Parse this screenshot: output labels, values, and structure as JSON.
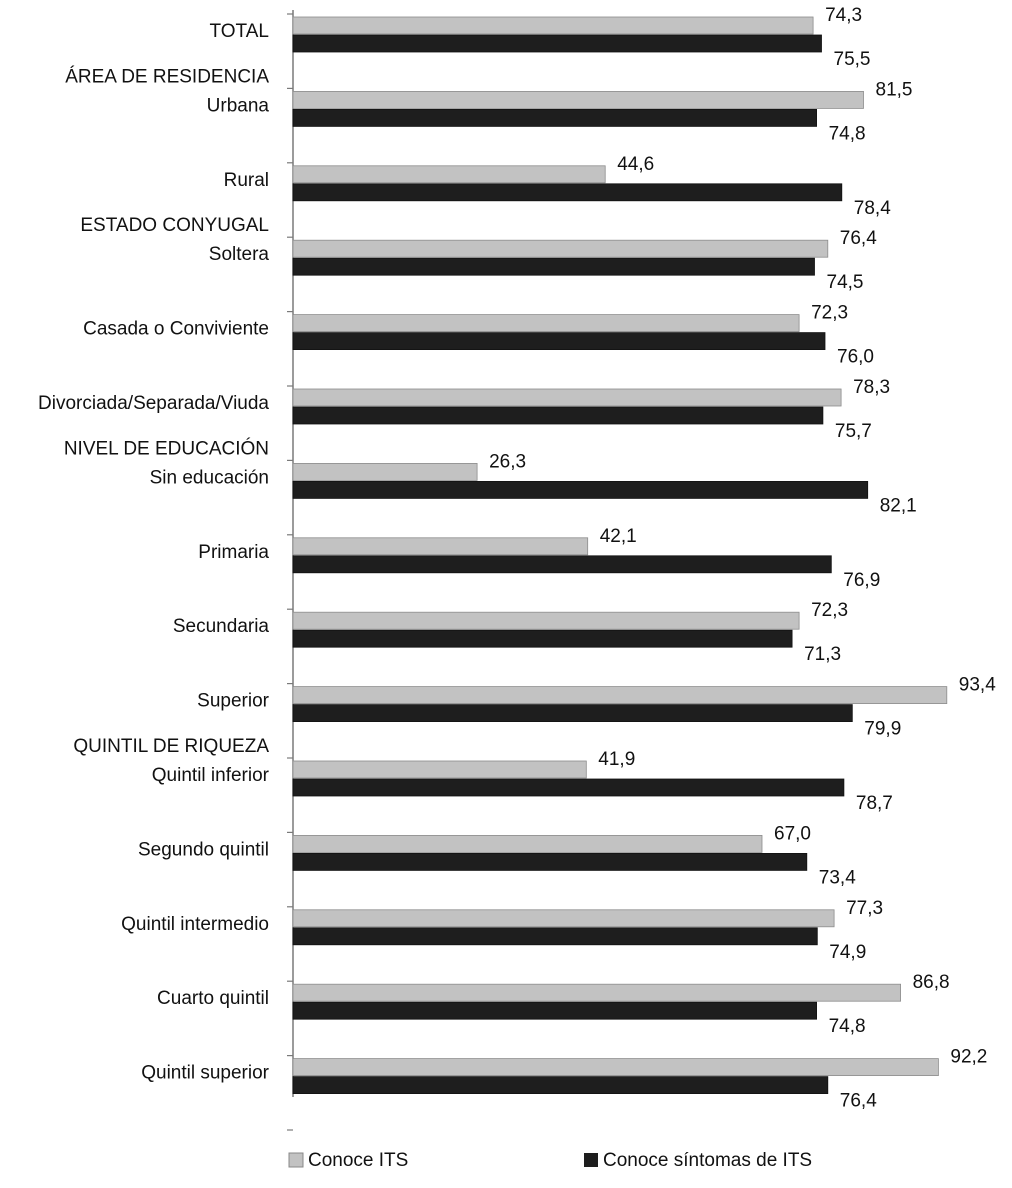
{
  "chart_data": {
    "type": "bar",
    "orientation": "horizontal",
    "title": "",
    "xlabel": "",
    "ylabel": "",
    "xlim": [
      0,
      100
    ],
    "grid": false,
    "legend_position": "bottom",
    "section_headers": [
      {
        "text": "ÁREA DE RESIDENCIA",
        "after": "TOTAL"
      },
      {
        "text": "ESTADO CONYUGAL",
        "after": "Rural"
      },
      {
        "text": "NIVEL DE EDUCACIÓN",
        "after": "Divorciada/Separada/Viuda"
      },
      {
        "text": "QUINTIL DE RIQUEZA",
        "after": "Superior"
      }
    ],
    "categories": [
      "TOTAL",
      "Urbana",
      "Rural",
      "Soltera",
      "Casada o Conviviente",
      "Divorciada/Separada/Viuda",
      "Sin educación",
      "Primaria",
      "Secundaria",
      "Superior",
      "Quintil inferior",
      "Segundo quintil",
      "Quintil intermedio",
      "Cuarto quintil",
      "Quintil superior"
    ],
    "series": [
      {
        "name": "Conoce ITS",
        "color": "#c2c2c2",
        "values": [
          74.3,
          81.5,
          44.6,
          76.4,
          72.3,
          78.3,
          26.3,
          42.1,
          72.3,
          93.4,
          41.9,
          67.0,
          77.3,
          86.8,
          92.2
        ],
        "labels": [
          "74,3",
          "81,5",
          "44,6",
          "76,4",
          "72,3",
          "78,3",
          "26,3",
          "42,1",
          "72,3",
          "93,4",
          "41,9",
          "67,0",
          "77,3",
          "86,8",
          "92,2"
        ]
      },
      {
        "name": "Conoce síntomas de ITS",
        "color": "#1e1e1e",
        "values": [
          75.5,
          74.8,
          78.4,
          74.5,
          76.0,
          75.7,
          82.1,
          76.9,
          71.3,
          79.9,
          78.7,
          73.4,
          74.9,
          74.8,
          76.4
        ],
        "labels": [
          "75,5",
          "74,8",
          "78,4",
          "74,5",
          "76,0",
          "75,7",
          "82,1",
          "76,9",
          "71,3",
          "79,9",
          "78,7",
          "73,4",
          "74,9",
          "74,8",
          "76,4"
        ]
      }
    ]
  }
}
